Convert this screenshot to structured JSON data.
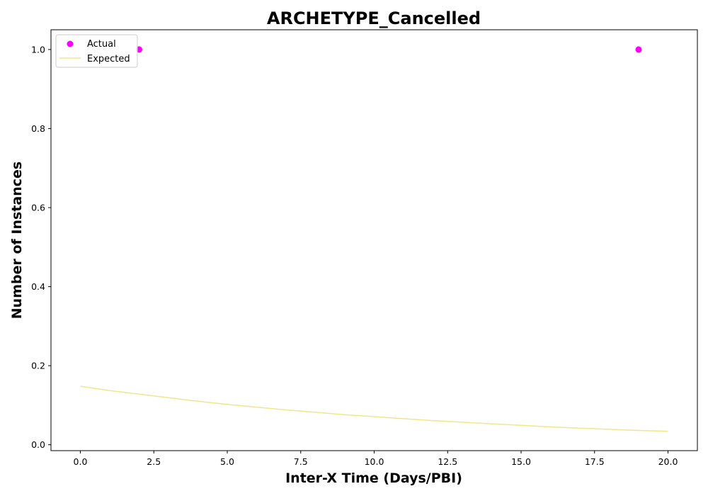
{
  "colors": {
    "actual": "#ff00ff",
    "expected": "#f0e68c",
    "axes": "#000000",
    "background": "#ffffff"
  },
  "chart_data": {
    "type": "scatter",
    "title": "ARCHETYPE_Cancelled",
    "xlabel": "Inter-X Time (Days/PBI)",
    "ylabel": "Number of Instances",
    "xlim": [
      -1.0,
      21.0
    ],
    "ylim": [
      -0.015,
      1.05
    ],
    "xticks": [
      0.0,
      2.5,
      5.0,
      7.5,
      10.0,
      12.5,
      15.0,
      17.5,
      20.0
    ],
    "xtick_labels": [
      "0.0",
      "2.5",
      "5.0",
      "7.5",
      "10.0",
      "12.5",
      "15.0",
      "17.5",
      "20.0"
    ],
    "yticks": [
      0.0,
      0.2,
      0.4,
      0.6,
      0.8,
      1.0
    ],
    "ytick_labels": [
      "0.0",
      "0.2",
      "0.4",
      "0.6",
      "0.8",
      "1.0"
    ],
    "grid": false,
    "legend_position": "upper-left",
    "series": [
      {
        "name": "Actual",
        "kind": "scatter",
        "color": "#ff00ff",
        "x": [
          2,
          19
        ],
        "y": [
          1.0,
          1.0
        ]
      },
      {
        "name": "Expected",
        "kind": "line",
        "color": "#f0e68c",
        "x": [
          0,
          1,
          2,
          3,
          4,
          5,
          6,
          7,
          8,
          9,
          10,
          11,
          12,
          13,
          14,
          15,
          16,
          17,
          18,
          19,
          20
        ],
        "y": [
          0.148,
          0.137,
          0.128,
          0.119,
          0.11,
          0.102,
          0.095,
          0.088,
          0.082,
          0.076,
          0.071,
          0.066,
          0.061,
          0.057,
          0.053,
          0.049,
          0.045,
          0.042,
          0.039,
          0.036,
          0.034
        ]
      }
    ]
  }
}
